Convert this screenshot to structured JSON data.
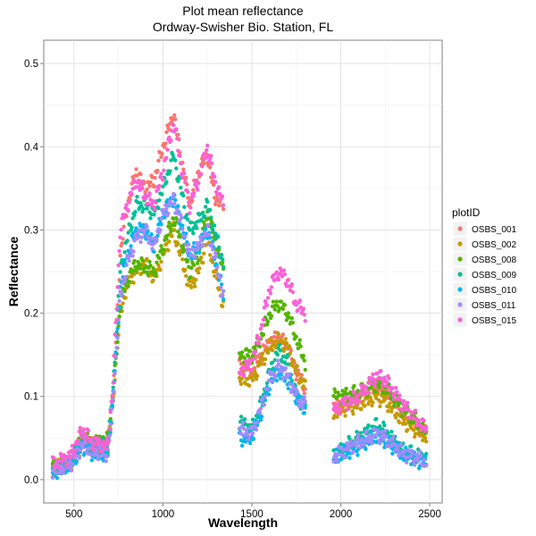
{
  "chart_data": {
    "type": "scatter",
    "title": "Plot mean reflectance",
    "subtitle": "Ordway-Swisher Bio. Station, FL",
    "xlabel": "Wavelength",
    "ylabel": "Reflectance",
    "xlim": [
      330,
      2570
    ],
    "ylim": [
      -0.028,
      0.528
    ],
    "x_ticks": [
      500,
      1000,
      1500,
      2000,
      2500
    ],
    "y_ticks": [
      0.0,
      0.1,
      0.2,
      0.3,
      0.4,
      0.5
    ],
    "x_tick_labels": [
      "500",
      "1000",
      "1500",
      "2000",
      "2500"
    ],
    "y_tick_labels": [
      "0.0",
      "0.1",
      "0.2",
      "0.3",
      "0.4",
      "0.5"
    ],
    "grid": true,
    "legend": {
      "title": "plotID",
      "position": "right"
    },
    "x_segments": [
      [
        380,
        1340
      ],
      [
        1430,
        1800
      ],
      [
        1960,
        2480
      ]
    ],
    "step": 5,
    "series": [
      {
        "name": "OSBS_001",
        "color": "#F8766D",
        "points": [
          [
            380,
            0.015
          ],
          [
            480,
            0.025
          ],
          [
            550,
            0.05
          ],
          [
            600,
            0.04
          ],
          [
            690,
            0.032
          ],
          [
            720,
            0.1
          ],
          [
            760,
            0.27
          ],
          [
            800,
            0.33
          ],
          [
            850,
            0.37
          ],
          [
            900,
            0.35
          ],
          [
            950,
            0.36
          ],
          [
            1000,
            0.4
          ],
          [
            1060,
            0.44
          ],
          [
            1100,
            0.39
          ],
          [
            1150,
            0.33
          ],
          [
            1200,
            0.37
          ],
          [
            1250,
            0.39
          ],
          [
            1290,
            0.34
          ],
          [
            1340,
            0.33
          ],
          [
            1430,
            0.14
          ],
          [
            1500,
            0.13
          ],
          [
            1550,
            0.15
          ],
          [
            1600,
            0.165
          ],
          [
            1650,
            0.17
          ],
          [
            1700,
            0.16
          ],
          [
            1750,
            0.13
          ],
          [
            1800,
            0.11
          ],
          [
            1960,
            0.09
          ],
          [
            2000,
            0.09
          ],
          [
            2100,
            0.1
          ],
          [
            2200,
            0.115
          ],
          [
            2250,
            0.105
          ],
          [
            2350,
            0.08
          ],
          [
            2480,
            0.055
          ]
        ]
      },
      {
        "name": "OSBS_002",
        "color": "#C49A00",
        "points": [
          [
            380,
            0.012
          ],
          [
            480,
            0.02
          ],
          [
            550,
            0.045
          ],
          [
            600,
            0.04
          ],
          [
            690,
            0.045
          ],
          [
            720,
            0.1
          ],
          [
            760,
            0.2
          ],
          [
            800,
            0.235
          ],
          [
            850,
            0.25
          ],
          [
            900,
            0.26
          ],
          [
            950,
            0.24
          ],
          [
            1000,
            0.27
          ],
          [
            1060,
            0.3
          ],
          [
            1100,
            0.27
          ],
          [
            1150,
            0.23
          ],
          [
            1200,
            0.25
          ],
          [
            1250,
            0.29
          ],
          [
            1290,
            0.25
          ],
          [
            1340,
            0.21
          ],
          [
            1430,
            0.12
          ],
          [
            1500,
            0.12
          ],
          [
            1550,
            0.14
          ],
          [
            1600,
            0.16
          ],
          [
            1650,
            0.168
          ],
          [
            1700,
            0.16
          ],
          [
            1750,
            0.13
          ],
          [
            1800,
            0.11
          ],
          [
            1960,
            0.08
          ],
          [
            2000,
            0.085
          ],
          [
            2100,
            0.09
          ],
          [
            2200,
            0.1
          ],
          [
            2250,
            0.095
          ],
          [
            2350,
            0.07
          ],
          [
            2480,
            0.052
          ]
        ]
      },
      {
        "name": "OSBS_008",
        "color": "#53B400",
        "points": [
          [
            380,
            0.013
          ],
          [
            480,
            0.022
          ],
          [
            550,
            0.055
          ],
          [
            600,
            0.045
          ],
          [
            690,
            0.048
          ],
          [
            720,
            0.1
          ],
          [
            760,
            0.21
          ],
          [
            800,
            0.24
          ],
          [
            850,
            0.26
          ],
          [
            900,
            0.255
          ],
          [
            950,
            0.25
          ],
          [
            1000,
            0.28
          ],
          [
            1060,
            0.315
          ],
          [
            1100,
            0.29
          ],
          [
            1150,
            0.25
          ],
          [
            1200,
            0.27
          ],
          [
            1250,
            0.32
          ],
          [
            1290,
            0.29
          ],
          [
            1340,
            0.25
          ],
          [
            1430,
            0.15
          ],
          [
            1500,
            0.15
          ],
          [
            1550,
            0.17
          ],
          [
            1600,
            0.2
          ],
          [
            1650,
            0.212
          ],
          [
            1700,
            0.2
          ],
          [
            1750,
            0.17
          ],
          [
            1800,
            0.14
          ],
          [
            1960,
            0.1
          ],
          [
            2000,
            0.1
          ],
          [
            2100,
            0.105
          ],
          [
            2200,
            0.115
          ],
          [
            2250,
            0.11
          ],
          [
            2350,
            0.085
          ],
          [
            2480,
            0.058
          ]
        ]
      },
      {
        "name": "OSBS_009",
        "color": "#00C094",
        "points": [
          [
            380,
            0.012
          ],
          [
            480,
            0.02
          ],
          [
            550,
            0.05
          ],
          [
            600,
            0.04
          ],
          [
            690,
            0.04
          ],
          [
            720,
            0.11
          ],
          [
            760,
            0.25
          ],
          [
            800,
            0.29
          ],
          [
            850,
            0.33
          ],
          [
            900,
            0.33
          ],
          [
            950,
            0.32
          ],
          [
            1000,
            0.35
          ],
          [
            1060,
            0.39
          ],
          [
            1100,
            0.35
          ],
          [
            1150,
            0.3
          ],
          [
            1200,
            0.31
          ],
          [
            1250,
            0.33
          ],
          [
            1290,
            0.3
          ],
          [
            1340,
            0.26
          ],
          [
            1430,
            0.07
          ],
          [
            1500,
            0.06
          ],
          [
            1550,
            0.09
          ],
          [
            1600,
            0.13
          ],
          [
            1650,
            0.155
          ],
          [
            1700,
            0.14
          ],
          [
            1750,
            0.1
          ],
          [
            1800,
            0.09
          ],
          [
            1960,
            0.03
          ],
          [
            2000,
            0.035
          ],
          [
            2100,
            0.05
          ],
          [
            2200,
            0.065
          ],
          [
            2250,
            0.058
          ],
          [
            2350,
            0.035
          ],
          [
            2480,
            0.025
          ]
        ]
      },
      {
        "name": "OSBS_010",
        "color": "#00B6EB",
        "points": [
          [
            380,
            0.009
          ],
          [
            480,
            0.018
          ],
          [
            550,
            0.04
          ],
          [
            600,
            0.032
          ],
          [
            690,
            0.03
          ],
          [
            720,
            0.1
          ],
          [
            760,
            0.23
          ],
          [
            800,
            0.27
          ],
          [
            850,
            0.3
          ],
          [
            900,
            0.3
          ],
          [
            950,
            0.28
          ],
          [
            1000,
            0.32
          ],
          [
            1060,
            0.34
          ],
          [
            1100,
            0.31
          ],
          [
            1150,
            0.27
          ],
          [
            1200,
            0.28
          ],
          [
            1250,
            0.3
          ],
          [
            1290,
            0.27
          ],
          [
            1340,
            0.22
          ],
          [
            1430,
            0.05
          ],
          [
            1500,
            0.05
          ],
          [
            1550,
            0.08
          ],
          [
            1600,
            0.115
          ],
          [
            1650,
            0.13
          ],
          [
            1700,
            0.12
          ],
          [
            1750,
            0.1
          ],
          [
            1800,
            0.085
          ],
          [
            1960,
            0.025
          ],
          [
            2000,
            0.03
          ],
          [
            2100,
            0.04
          ],
          [
            2200,
            0.052
          ],
          [
            2250,
            0.048
          ],
          [
            2350,
            0.03
          ],
          [
            2480,
            0.02
          ]
        ]
      },
      {
        "name": "OSBS_011",
        "color": "#A58AFF",
        "points": [
          [
            380,
            0.01
          ],
          [
            480,
            0.019
          ],
          [
            550,
            0.042
          ],
          [
            600,
            0.034
          ],
          [
            690,
            0.032
          ],
          [
            720,
            0.1
          ],
          [
            760,
            0.22
          ],
          [
            800,
            0.26
          ],
          [
            850,
            0.29
          ],
          [
            900,
            0.3
          ],
          [
            950,
            0.28
          ],
          [
            1000,
            0.32
          ],
          [
            1060,
            0.335
          ],
          [
            1100,
            0.31
          ],
          [
            1150,
            0.27
          ],
          [
            1200,
            0.28
          ],
          [
            1250,
            0.3
          ],
          [
            1290,
            0.27
          ],
          [
            1340,
            0.22
          ],
          [
            1430,
            0.06
          ],
          [
            1500,
            0.055
          ],
          [
            1550,
            0.085
          ],
          [
            1600,
            0.12
          ],
          [
            1650,
            0.135
          ],
          [
            1700,
            0.125
          ],
          [
            1750,
            0.1
          ],
          [
            1800,
            0.088
          ],
          [
            1960,
            0.028
          ],
          [
            2000,
            0.032
          ],
          [
            2100,
            0.045
          ],
          [
            2200,
            0.055
          ],
          [
            2250,
            0.05
          ],
          [
            2350,
            0.032
          ],
          [
            2480,
            0.022
          ]
        ]
      },
      {
        "name": "OSBS_015",
        "color": "#FB61D7",
        "points": [
          [
            380,
            0.018
          ],
          [
            480,
            0.028
          ],
          [
            550,
            0.06
          ],
          [
            600,
            0.045
          ],
          [
            690,
            0.04
          ],
          [
            720,
            0.12
          ],
          [
            760,
            0.3
          ],
          [
            800,
            0.33
          ],
          [
            850,
            0.36
          ],
          [
            900,
            0.34
          ],
          [
            950,
            0.33
          ],
          [
            1000,
            0.37
          ],
          [
            1060,
            0.43
          ],
          [
            1100,
            0.38
          ],
          [
            1150,
            0.33
          ],
          [
            1200,
            0.36
          ],
          [
            1250,
            0.4
          ],
          [
            1290,
            0.36
          ],
          [
            1340,
            0.33
          ],
          [
            1430,
            0.13
          ],
          [
            1500,
            0.14
          ],
          [
            1550,
            0.18
          ],
          [
            1600,
            0.23
          ],
          [
            1650,
            0.25
          ],
          [
            1700,
            0.24
          ],
          [
            1750,
            0.21
          ],
          [
            1800,
            0.2
          ],
          [
            1960,
            0.08
          ],
          [
            2000,
            0.09
          ],
          [
            2100,
            0.1
          ],
          [
            2200,
            0.125
          ],
          [
            2250,
            0.12
          ],
          [
            2350,
            0.09
          ],
          [
            2480,
            0.06
          ]
        ]
      }
    ]
  }
}
